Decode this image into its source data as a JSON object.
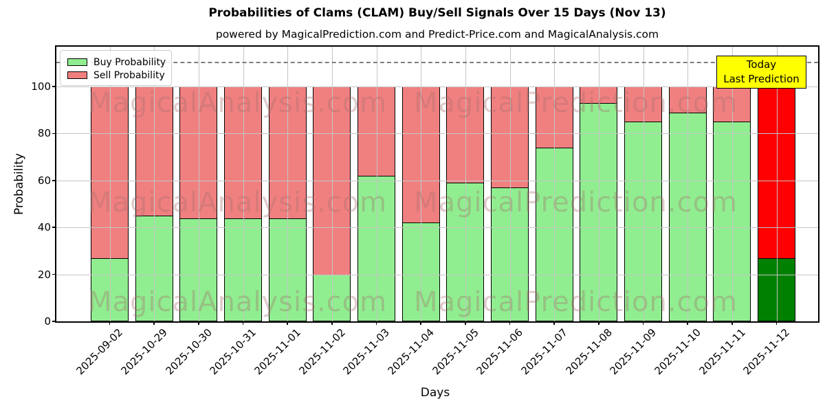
{
  "title": "Probabilities of Clams (CLAM) Buy/Sell Signals Over 15 Days (Nov 13)",
  "subtitle": "powered by MagicalPrediction.com and Predict-Price.com and MagicalAnalysis.com",
  "axes": {
    "xlabel": "Days",
    "ylabel": "Probability",
    "yticks": [
      0,
      20,
      40,
      60,
      80,
      100
    ]
  },
  "legend": {
    "items": [
      {
        "label": "Buy Probability",
        "color": "#90EE90"
      },
      {
        "label": "Sell Probability",
        "color": "#F08080"
      }
    ]
  },
  "annotation": {
    "line1": "Today",
    "line2": "Last Prediction",
    "bg_color": "#FFFF00"
  },
  "watermarks": {
    "left": "MagicalAnalysis.com",
    "right": "MagicalPrediction.com"
  },
  "chart_data": {
    "type": "bar",
    "stacked": true,
    "title": "Probabilities of Clams (CLAM) Buy/Sell Signals Over 15 Days (Nov 13)",
    "xlabel": "Days",
    "ylabel": "Probability",
    "categories": [
      "2025-09-02",
      "2025-10-29",
      "2025-10-30",
      "2025-10-31",
      "2025-11-01",
      "2025-11-02",
      "2025-11-03",
      "2025-11-04",
      "2025-11-05",
      "2025-11-06",
      "2025-11-07",
      "2025-11-08",
      "2025-11-09",
      "2025-11-10",
      "2025-11-11",
      "2025-11-12"
    ],
    "series": [
      {
        "name": "Buy Probability",
        "color": "#90EE90",
        "values": [
          27,
          45,
          44,
          44,
          44,
          20,
          62,
          42,
          59,
          57,
          74,
          93,
          85,
          89,
          85,
          27
        ]
      },
      {
        "name": "Sell Probability",
        "color": "#F08080",
        "values": [
          73,
          55,
          56,
          56,
          56,
          80,
          38,
          58,
          41,
          43,
          26,
          7,
          15,
          11,
          15,
          73
        ]
      }
    ],
    "highlight_last_bar": {
      "category": "2025-11-12",
      "buy_color": "#008000",
      "sell_color": "#FF0000"
    },
    "bar_edge_color": "#000000",
    "ylim": [
      0,
      117
    ],
    "dashed_line_y": 110.5,
    "grid": true,
    "legend_position": "upper left"
  }
}
